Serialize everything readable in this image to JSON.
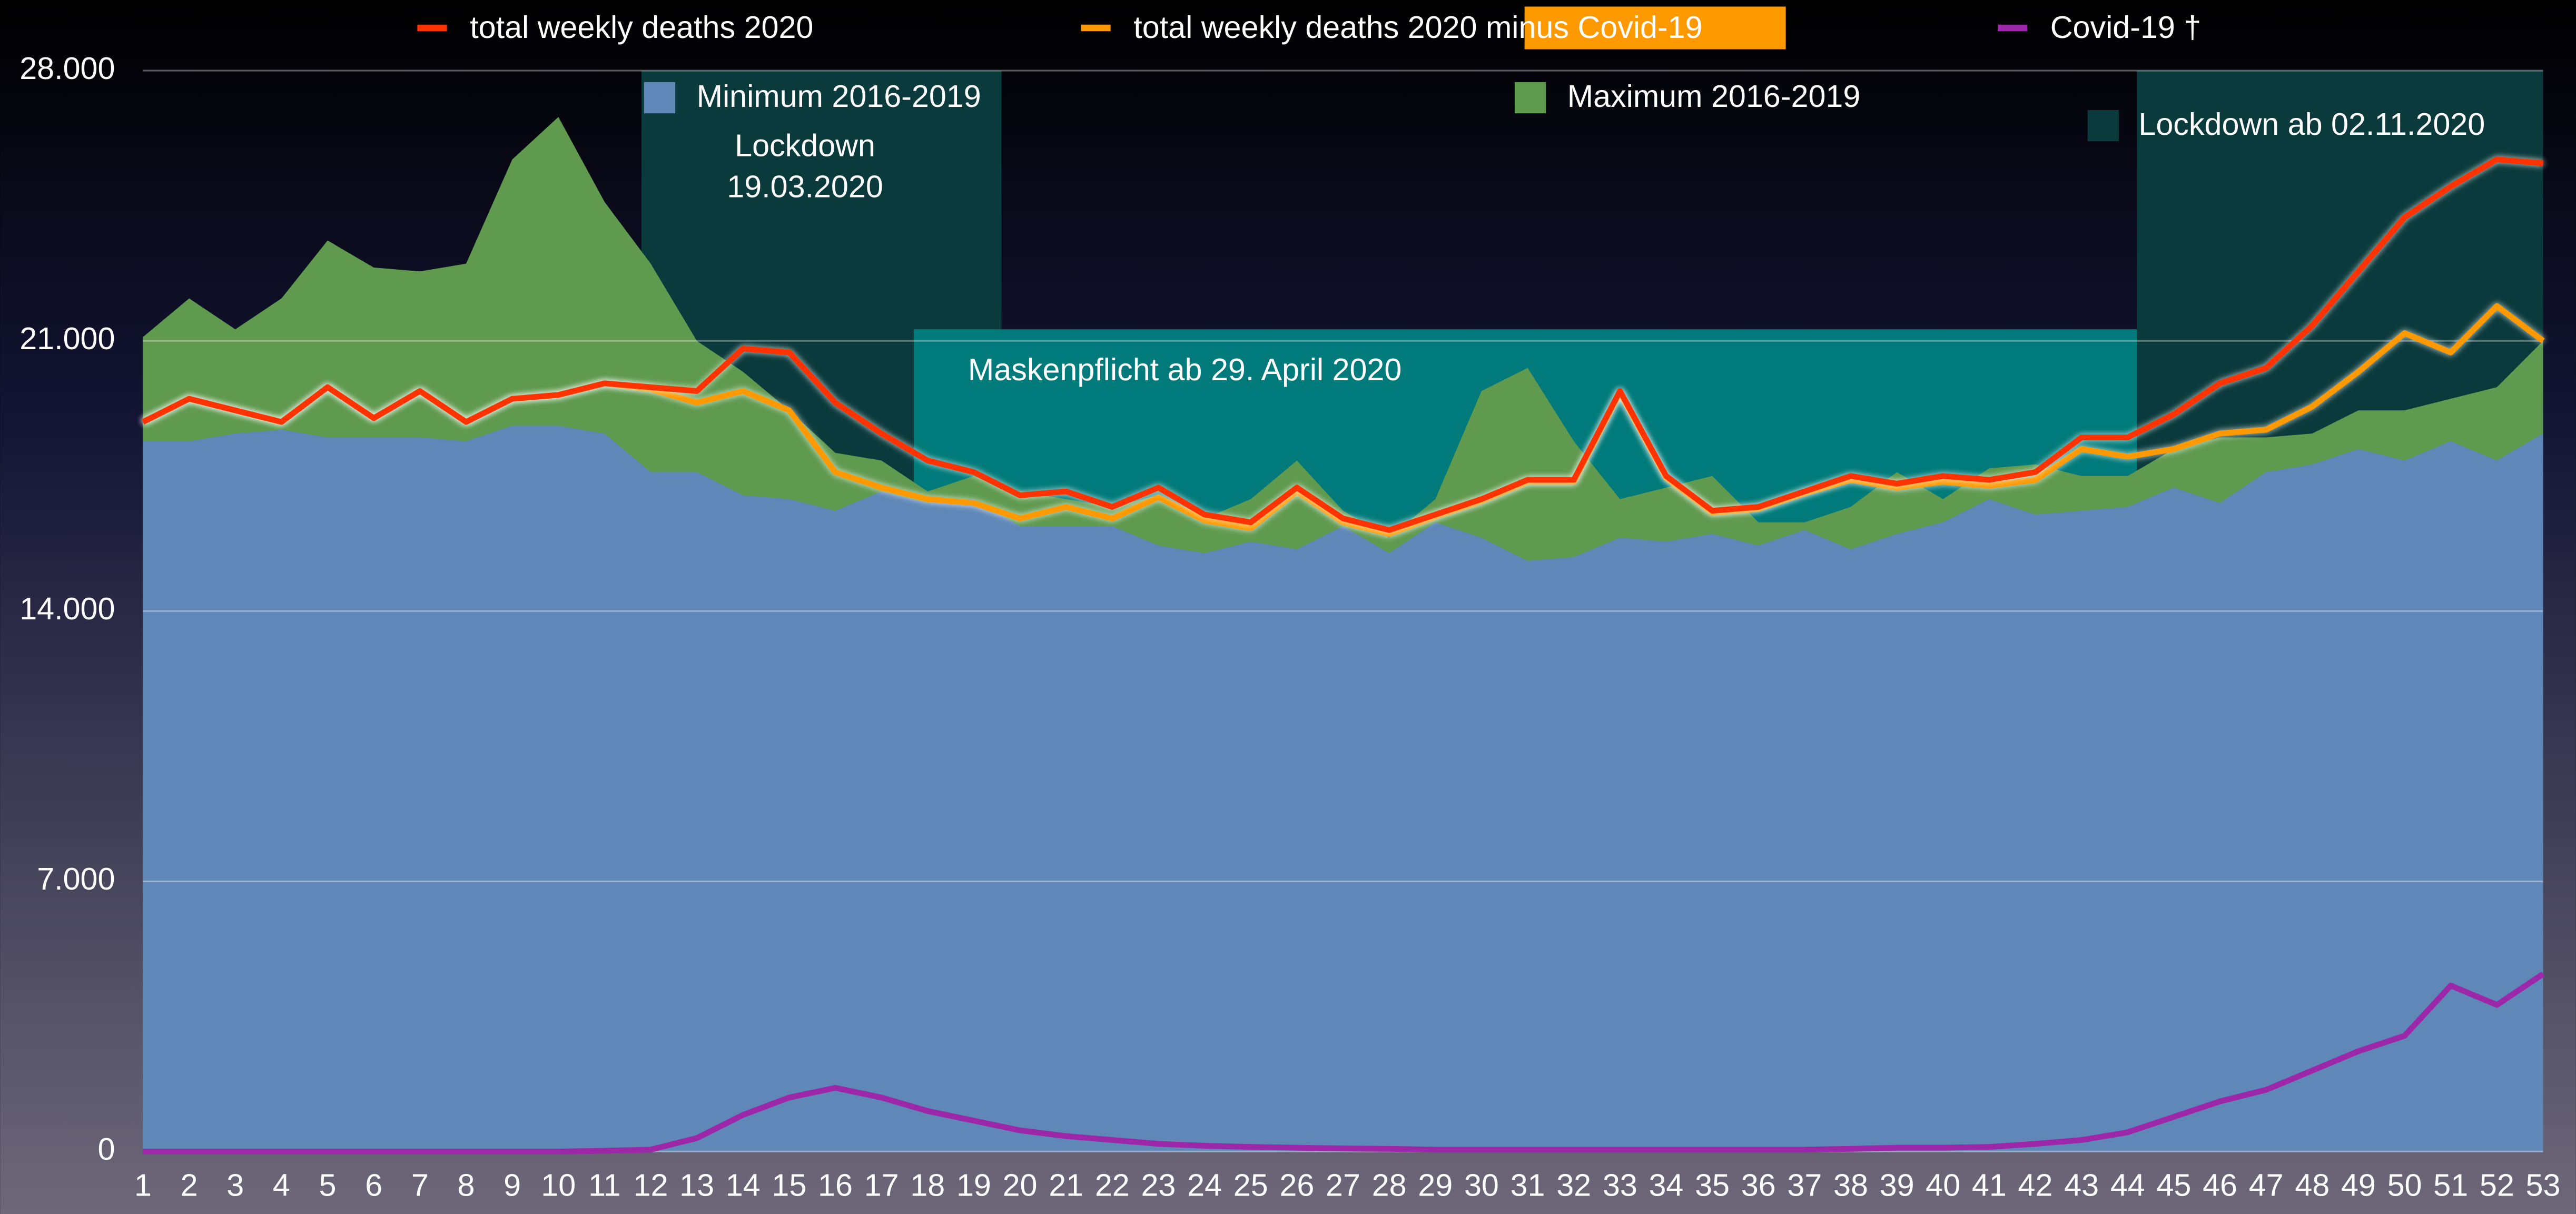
{
  "chart_data": {
    "type": "line",
    "x": [
      1,
      2,
      3,
      4,
      5,
      6,
      7,
      8,
      9,
      10,
      11,
      12,
      13,
      14,
      15,
      16,
      17,
      18,
      19,
      20,
      21,
      22,
      23,
      24,
      25,
      26,
      27,
      28,
      29,
      30,
      31,
      32,
      33,
      34,
      35,
      36,
      37,
      38,
      39,
      40,
      41,
      42,
      43,
      44,
      45,
      46,
      47,
      48,
      49,
      50,
      51,
      52,
      53
    ],
    "xlim": [
      1,
      53
    ],
    "ylim": [
      0,
      28000
    ],
    "yticks": [
      0,
      {
        "value": 7000,
        "label": "7.000"
      },
      {
        "value": 14000,
        "label": "14.000"
      },
      {
        "value": 21000,
        "label": "21.000"
      },
      {
        "value": 28000,
        "label": "28.000"
      }
    ],
    "grid": true,
    "spans": [
      {
        "label": [
          "Lockdown",
          "19.03.2020"
        ],
        "x": [
          11.8,
          19.6
        ],
        "top": 28000,
        "color": "#0b3a3c"
      },
      {
        "label": "Maskenpflicht ab 29. April 2020",
        "x": [
          17.7,
          53
        ],
        "top": 21300,
        "color": "#007a7a"
      },
      {
        "label": "Lockdown ab 02.11.2020",
        "x": [
          44.2,
          53
        ],
        "top": 28000,
        "color": "#0b3a3c"
      }
    ],
    "series": [
      {
        "name": "Maximum 2016-2019",
        "style": "area",
        "color": "#5f9a4f",
        "values": [
          21100,
          22100,
          21300,
          22100,
          23600,
          22900,
          22800,
          23000,
          25700,
          26800,
          24600,
          23000,
          21000,
          20200,
          19200,
          18100,
          17900,
          17100,
          17500,
          17100,
          16900,
          16700,
          17000,
          16400,
          16900,
          17900,
          16600,
          15900,
          16900,
          19700,
          20300,
          18400,
          16900,
          17200,
          17500,
          16300,
          16300,
          16700,
          17600,
          16900,
          17700,
          17800,
          17500,
          17500,
          18200,
          18500,
          18500,
          18600,
          19200,
          19200,
          19500,
          19800,
          21000
        ]
      },
      {
        "name": "Minimum 2016-2019",
        "style": "area",
        "color": "#5f88b8",
        "values": [
          18400,
          18400,
          18600,
          18700,
          18500,
          18500,
          18500,
          18400,
          18800,
          18800,
          18600,
          17600,
          17600,
          17000,
          16900,
          16600,
          17100,
          16800,
          16900,
          16200,
          16200,
          16200,
          15700,
          15500,
          15800,
          15600,
          16200,
          15500,
          16300,
          15900,
          15300,
          15400,
          15900,
          15800,
          16000,
          15700,
          16100,
          15600,
          16000,
          16300,
          16900,
          16500,
          16600,
          16700,
          17200,
          16800,
          17600,
          17800,
          18200,
          17900,
          18400,
          17900,
          18600
        ]
      },
      {
        "name": "total weekly deaths 2020 minus Covid-19",
        "style": "line",
        "color": "#ff9900",
        "values": [
          18900,
          19500,
          19200,
          18900,
          19800,
          19000,
          19700,
          18900,
          19500,
          19600,
          19900,
          19750,
          19400,
          19700,
          19200,
          17600,
          17200,
          16900,
          16800,
          16400,
          16700,
          16400,
          16950,
          16350,
          16150,
          17100,
          16300,
          16000,
          16450,
          16850,
          17350,
          17350,
          19650,
          17450,
          16550,
          16650,
          17050,
          17400,
          17200,
          17350,
          17250,
          17400,
          18200,
          18000,
          18200,
          18600,
          18700,
          19300,
          20200,
          21200,
          20700,
          21900,
          21000
        ]
      },
      {
        "name": "total weekly deaths 2020",
        "style": "line",
        "color": "#ff3300",
        "values": [
          18900,
          19500,
          19200,
          18900,
          19800,
          19000,
          19700,
          18900,
          19500,
          19600,
          19900,
          19800,
          19700,
          20800,
          20700,
          19400,
          18600,
          17900,
          17600,
          17000,
          17100,
          16700,
          17200,
          16500,
          16300,
          17200,
          16400,
          16100,
          16500,
          16900,
          17400,
          17400,
          19700,
          17500,
          16600,
          16700,
          17100,
          17500,
          17300,
          17500,
          17400,
          17600,
          18500,
          18500,
          19100,
          19900,
          20300,
          21400,
          22800,
          24200,
          25000,
          25700,
          25600
        ]
      },
      {
        "name": "Covid-19 †",
        "style": "line",
        "color": "#9c27a8",
        "values": [
          0,
          0,
          0,
          0,
          0,
          0,
          0,
          0,
          0,
          0,
          20,
          50,
          350,
          950,
          1400,
          1650,
          1400,
          1050,
          800,
          550,
          400,
          300,
          200,
          150,
          120,
          100,
          80,
          70,
          50,
          50,
          50,
          50,
          50,
          50,
          50,
          50,
          50,
          70,
          100,
          100,
          120,
          200,
          300,
          500,
          900,
          1300,
          1600,
          2100,
          2600,
          3000,
          4300,
          3800,
          4600
        ]
      }
    ]
  }
}
